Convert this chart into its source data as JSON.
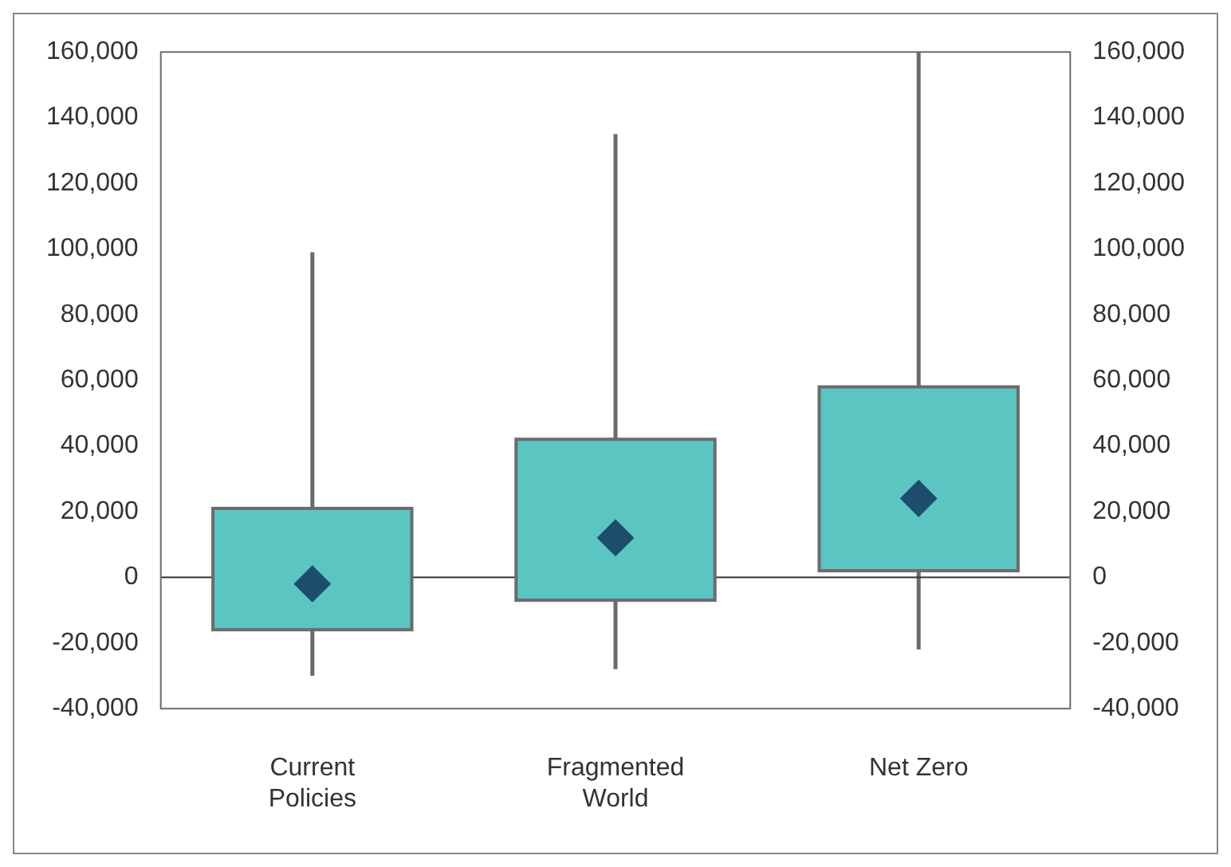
{
  "chart_data": {
    "type": "box",
    "categories": [
      "Current Policies",
      "Fragmented World",
      "Net Zero"
    ],
    "boxes": [
      {
        "low": -30000,
        "q1": -16000,
        "q3": 21000,
        "high": 99000,
        "mean": -2000
      },
      {
        "low": -28000,
        "q1": -7000,
        "q3": 42000,
        "high": 135000,
        "mean": 12000
      },
      {
        "low": -22000,
        "q1": 2000,
        "q3": 58000,
        "high": 160000,
        "mean": 24000
      }
    ],
    "color": "#5bc5c2",
    "ylim": [
      -40000,
      160000
    ],
    "yticks": [
      {
        "value": -40000,
        "label": "-40,000"
      },
      {
        "value": -20000,
        "label": "-20,000"
      },
      0,
      {
        "value": 20000,
        "label": "20,000"
      },
      {
        "value": 40000,
        "label": "40,000"
      },
      {
        "value": 60000,
        "label": "60,000"
      },
      {
        "value": 80000,
        "label": "80,000"
      },
      {
        "value": 100000,
        "label": "100,000"
      },
      {
        "value": 120000,
        "label": "120,000"
      },
      {
        "value": 140000,
        "label": "140,000"
      },
      {
        "value": 160000,
        "label": "160,000"
      }
    ],
    "y2lim": [
      -40000,
      160000
    ],
    "y2ticks": [
      {
        "value": -40000,
        "label": "-40,000"
      },
      {
        "value": -20000,
        "label": "-20,000"
      },
      0,
      {
        "value": 20000,
        "label": "20,000"
      },
      {
        "value": 40000,
        "label": "40,000"
      },
      {
        "value": 60000,
        "label": "60,000"
      },
      {
        "value": 80000,
        "label": "80,000"
      },
      {
        "value": 100000,
        "label": "100,000"
      },
      {
        "value": 120000,
        "label": "120,000"
      },
      {
        "value": 140000,
        "label": "140,000"
      },
      {
        "value": 160000,
        "label": "160,000"
      }
    ],
    "ref_lines": [
      {
        "axis": "y",
        "value": 0,
        "color": "#333333"
      }
    ],
    "grid": false,
    "legend": false,
    "marker": "diamond"
  }
}
